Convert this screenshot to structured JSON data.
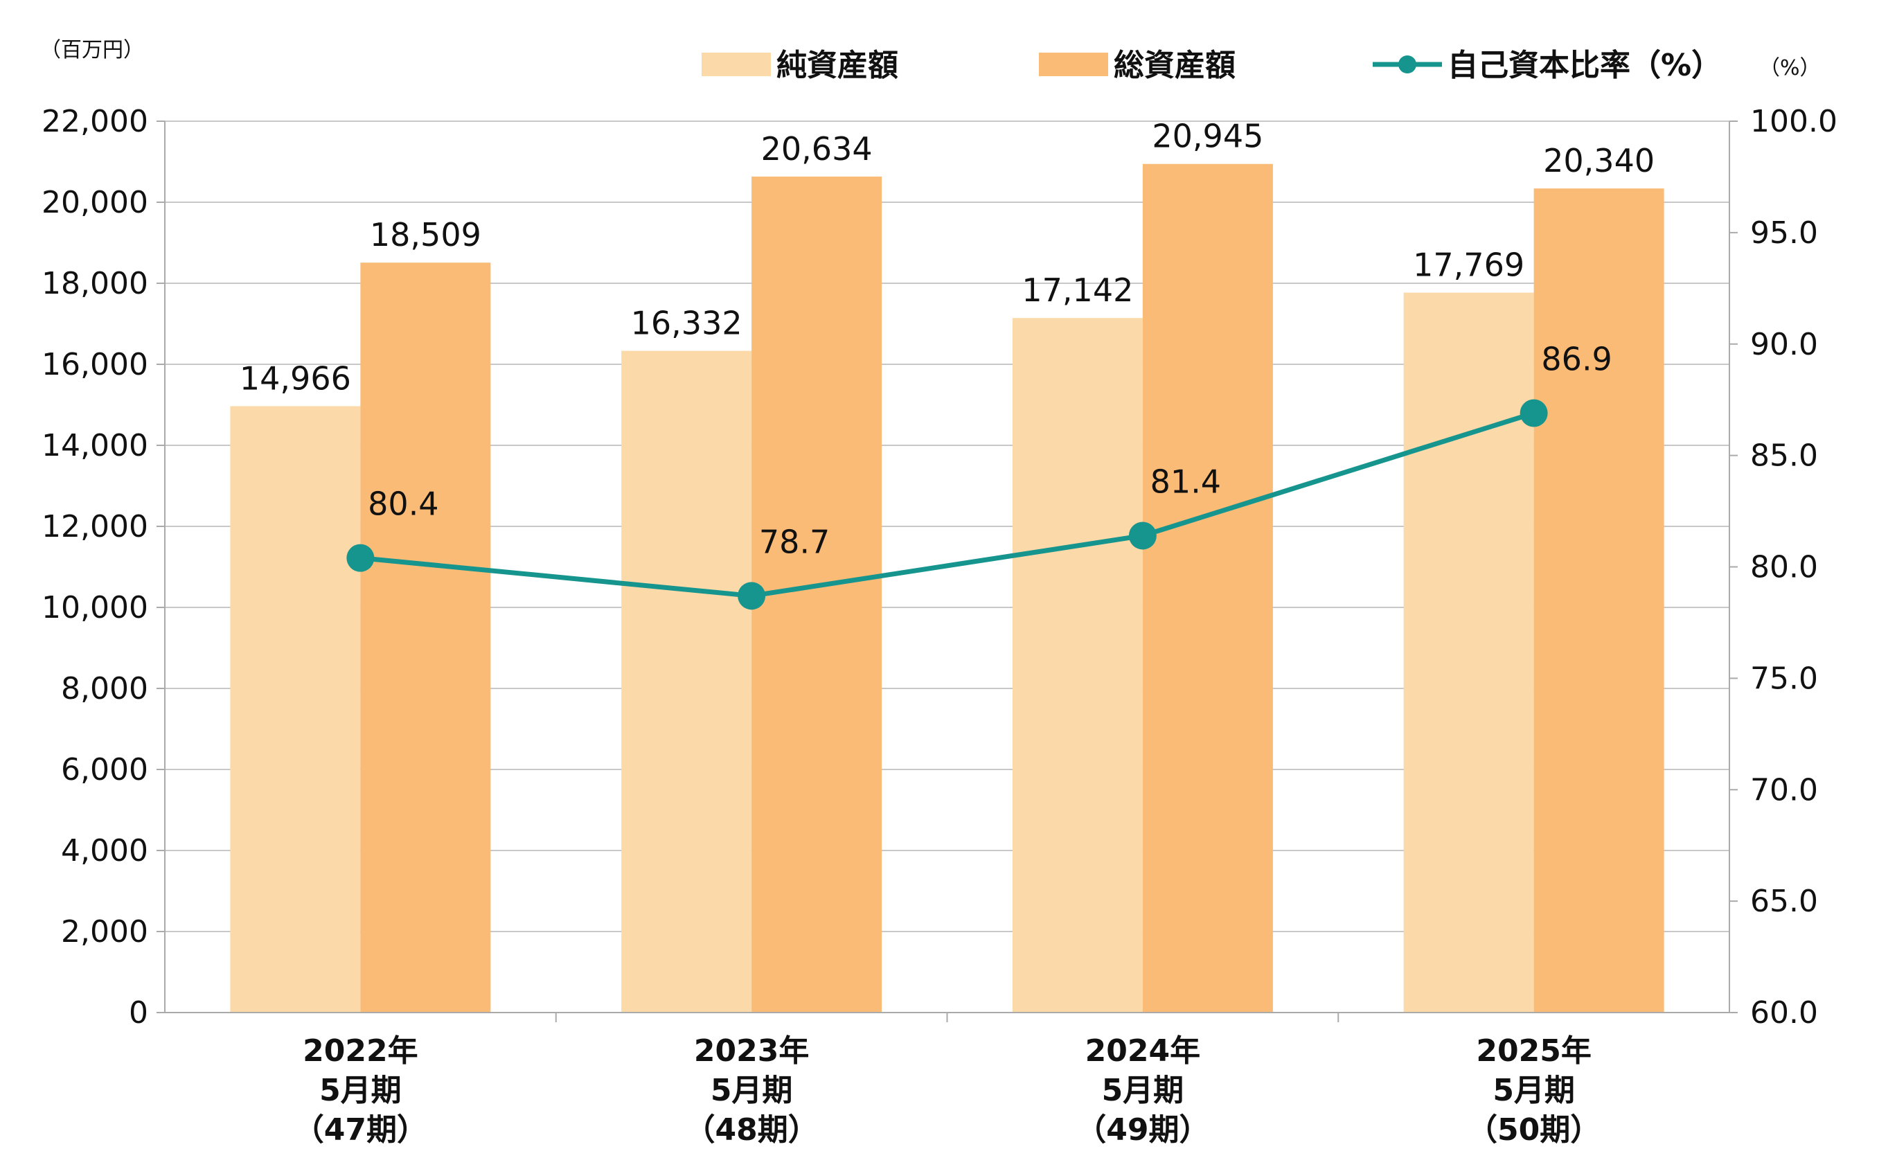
{
  "chart_data": {
    "type": "bar",
    "categories": [
      [
        "2022年",
        "5月期",
        "（47期）"
      ],
      [
        "2023年",
        "5月期",
        "（48期）"
      ],
      [
        "2024年",
        "5月期",
        "（49期）"
      ],
      [
        "2025年",
        "5月期",
        "（50期）"
      ]
    ],
    "series": [
      {
        "name": "純資産額",
        "type": "bar",
        "axis": "left",
        "values": [
          14966,
          16332,
          17142,
          17769
        ],
        "labels": [
          "14,966",
          "16,332",
          "17,142",
          "17,769"
        ],
        "color": "#FCD9A8"
      },
      {
        "name": "総資産額",
        "type": "bar",
        "axis": "left",
        "values": [
          18509,
          20634,
          20945,
          20340
        ],
        "labels": [
          "18,509",
          "20,634",
          "20,945",
          "20,340"
        ],
        "color": "#F9BB76"
      },
      {
        "name": "自己資本比率（%）",
        "type": "line",
        "axis": "right",
        "values": [
          80.4,
          78.7,
          81.4,
          86.9
        ],
        "labels": [
          "80.4",
          "78.7",
          "81.4",
          "86.9"
        ],
        "color": "#16958F"
      }
    ],
    "y_left": {
      "unit": "（百万円）",
      "ylim": [
        0,
        22000
      ],
      "ticks": [
        0,
        2000,
        4000,
        6000,
        8000,
        10000,
        12000,
        14000,
        16000,
        18000,
        20000,
        22000
      ],
      "tick_labels": [
        "0",
        "2,000",
        "4,000",
        "6,000",
        "8,000",
        "10,000",
        "12,000",
        "14,000",
        "16,000",
        "18,000",
        "20,000",
        "22,000"
      ]
    },
    "y_right": {
      "unit": "（%）",
      "ylim": [
        60,
        100
      ],
      "ticks": [
        60,
        65,
        70,
        75,
        80,
        85,
        90,
        95,
        100
      ],
      "tick_labels": [
        "60.0",
        "65.0",
        "70.0",
        "75.0",
        "80.0",
        "85.0",
        "90.0",
        "95.0",
        "100.0"
      ]
    },
    "grid": true,
    "legend_position": "top"
  }
}
